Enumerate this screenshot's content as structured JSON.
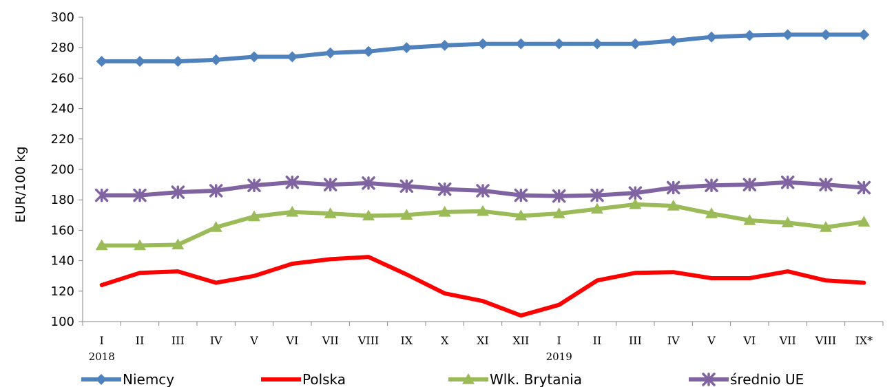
{
  "chart_data": {
    "type": "line",
    "ylabel": "EUR/100 kg",
    "ylim": [
      100,
      300
    ],
    "yticks": [
      100,
      120,
      140,
      160,
      180,
      200,
      220,
      240,
      260,
      280,
      300
    ],
    "categories": [
      "I",
      "II",
      "III",
      "IV",
      "V",
      "VI",
      "VII",
      "VIII",
      "IX",
      "X",
      "XI",
      "XII",
      "I",
      "II",
      "III",
      "IV",
      "V",
      "VI",
      "VII",
      "VIII",
      "IX*"
    ],
    "year_labels": [
      {
        "year": "2018",
        "category_index": 0
      },
      {
        "year": "2019",
        "category_index": 12
      }
    ],
    "legend_position": "bottom",
    "grid": false,
    "series": [
      {
        "name": "Niemcy",
        "color": "#4f81bd",
        "marker": "diamond",
        "values": [
          271,
          271,
          271,
          272,
          274,
          274,
          276.5,
          277.5,
          280,
          281.5,
          282.5,
          282.5,
          282.5,
          282.5,
          282.5,
          284.5,
          287,
          288,
          288.5,
          288.5,
          288.5
        ]
      },
      {
        "name": "Polska",
        "color": "#ff0000",
        "marker": "none",
        "values": [
          124,
          132,
          133,
          125.5,
          130,
          138,
          141,
          142.5,
          131,
          118.5,
          113.5,
          104,
          111,
          127,
          132,
          132.5,
          128.5,
          128.5,
          133,
          127,
          125.5
        ]
      },
      {
        "name": "Wlk. Brytania",
        "color": "#9bbb59",
        "marker": "triangle",
        "values": [
          150,
          150,
          150.5,
          162,
          169,
          172,
          171,
          169.5,
          170,
          172,
          172.5,
          169.5,
          171,
          174,
          177,
          176,
          171,
          166.5,
          165,
          162,
          165.5
        ]
      },
      {
        "name": "średnio UE",
        "color": "#8064a2",
        "marker": "star",
        "values": [
          183,
          183,
          185,
          186,
          189.5,
          191.5,
          190,
          191,
          189,
          187,
          186,
          183,
          182.5,
          183,
          184.5,
          188,
          189.5,
          190,
          191.5,
          190,
          188
        ]
      }
    ]
  }
}
